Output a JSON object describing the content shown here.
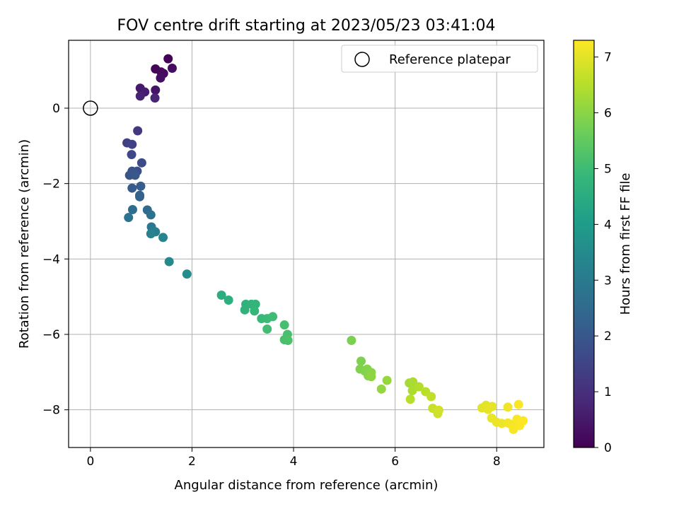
{
  "chart_data": {
    "type": "scatter",
    "title": "FOV centre drift starting at 2023/05/23 03:41:04",
    "xlabel": "Angular distance from reference (arcmin)",
    "ylabel": "Rotation from reference (arcmin)",
    "xlim": [
      -0.43,
      8.93
    ],
    "ylim": [
      -9.0,
      1.8
    ],
    "xticks": [
      0,
      2,
      4,
      6,
      8
    ],
    "yticks": [
      0,
      -2,
      -4,
      -6,
      -8
    ],
    "grid": true,
    "legend": {
      "position": "top-right",
      "entries": [
        "Reference platepar"
      ]
    },
    "reference_point": {
      "x": 0.0,
      "y": 0.0,
      "marker": "open-circle",
      "color": "#000000"
    },
    "colorbar": {
      "label": "Hours from first FF file",
      "range": [
        0,
        7.3
      ],
      "ticks": [
        0,
        1,
        2,
        3,
        4,
        5,
        6,
        7
      ],
      "colormap": "viridis",
      "stops": [
        "#440154",
        "#482878",
        "#3e4989",
        "#31688e",
        "#26828e",
        "#1f9e89",
        "#35b779",
        "#6ece58",
        "#b5de2b",
        "#fde725"
      ]
    },
    "series": [
      {
        "points": [
          [
            1.53,
            1.31,
            0.05
          ],
          [
            1.28,
            1.04,
            0.1
          ],
          [
            1.39,
            0.96,
            0.15
          ],
          [
            1.44,
            0.92,
            0.2
          ],
          [
            1.61,
            1.06,
            0.25
          ],
          [
            1.38,
            0.8,
            0.3
          ],
          [
            1.28,
            0.48,
            0.4
          ],
          [
            0.98,
            0.53,
            0.5
          ],
          [
            1.07,
            0.43,
            0.6
          ],
          [
            0.98,
            0.32,
            0.7
          ],
          [
            1.27,
            0.27,
            0.75
          ],
          [
            0.93,
            -0.6,
            1.2
          ],
          [
            0.72,
            -0.92,
            1.35
          ],
          [
            0.82,
            -0.96,
            1.45
          ],
          [
            0.81,
            -1.23,
            1.6
          ],
          [
            1.01,
            -1.45,
            1.7
          ],
          [
            0.92,
            -1.67,
            1.8
          ],
          [
            0.87,
            -1.72,
            1.85
          ],
          [
            0.82,
            -1.67,
            1.9
          ],
          [
            0.77,
            -1.78,
            1.95
          ],
          [
            0.88,
            -1.78,
            2.0
          ],
          [
            0.82,
            -2.12,
            2.1
          ],
          [
            0.99,
            -2.07,
            2.15
          ],
          [
            0.97,
            -2.31,
            2.2
          ],
          [
            0.97,
            -2.35,
            2.3
          ],
          [
            1.12,
            -2.7,
            2.5
          ],
          [
            0.83,
            -2.69,
            2.6
          ],
          [
            1.19,
            -2.83,
            2.7
          ],
          [
            0.75,
            -2.9,
            2.8
          ],
          [
            1.2,
            -3.15,
            2.9
          ],
          [
            1.22,
            -3.24,
            3.0
          ],
          [
            1.28,
            -3.28,
            3.1
          ],
          [
            1.19,
            -3.33,
            3.2
          ],
          [
            1.43,
            -3.43,
            3.3
          ],
          [
            1.55,
            -4.07,
            3.45
          ],
          [
            1.9,
            -4.4,
            3.6
          ],
          [
            2.58,
            -4.96,
            4.55
          ],
          [
            2.72,
            -5.09,
            4.6
          ],
          [
            3.06,
            -5.2,
            4.7
          ],
          [
            3.04,
            -5.35,
            4.72
          ],
          [
            3.17,
            -5.2,
            4.75
          ],
          [
            3.25,
            -5.2,
            4.8
          ],
          [
            3.23,
            -5.38,
            4.85
          ],
          [
            3.37,
            -5.58,
            4.9
          ],
          [
            3.48,
            -5.58,
            4.95
          ],
          [
            3.59,
            -5.53,
            5.0
          ],
          [
            3.48,
            -5.86,
            5.05
          ],
          [
            3.82,
            -5.75,
            5.1
          ],
          [
            3.88,
            -6.0,
            5.15
          ],
          [
            3.82,
            -6.14,
            5.15
          ],
          [
            3.89,
            -6.16,
            5.2
          ],
          [
            5.14,
            -6.16,
            5.8
          ],
          [
            5.33,
            -6.71,
            5.85
          ],
          [
            5.31,
            -6.92,
            5.87
          ],
          [
            5.4,
            -6.97,
            5.9
          ],
          [
            5.45,
            -6.92,
            5.92
          ],
          [
            5.47,
            -7.1,
            5.95
          ],
          [
            5.53,
            -7.01,
            6.0
          ],
          [
            5.53,
            -7.12,
            6.05
          ],
          [
            5.73,
            -7.45,
            6.1
          ],
          [
            5.84,
            -7.22,
            6.15
          ],
          [
            6.28,
            -7.29,
            6.3
          ],
          [
            6.35,
            -7.26,
            6.35
          ],
          [
            6.34,
            -7.49,
            6.4
          ],
          [
            6.47,
            -7.39,
            6.45
          ],
          [
            6.3,
            -7.72,
            6.5
          ],
          [
            6.6,
            -7.52,
            6.55
          ],
          [
            6.71,
            -7.65,
            6.6
          ],
          [
            6.74,
            -7.96,
            6.7
          ],
          [
            6.84,
            -8.1,
            6.75
          ],
          [
            6.86,
            -8.01,
            6.8
          ],
          [
            7.71,
            -7.95,
            7.0
          ],
          [
            7.79,
            -7.88,
            7.02
          ],
          [
            7.83,
            -7.99,
            7.05
          ],
          [
            7.91,
            -7.91,
            7.05
          ],
          [
            7.9,
            -8.22,
            7.08
          ],
          [
            8.0,
            -8.33,
            7.1
          ],
          [
            8.1,
            -8.36,
            7.12
          ],
          [
            8.22,
            -7.93,
            7.15
          ],
          [
            8.22,
            -8.35,
            7.18
          ],
          [
            8.29,
            -8.39,
            7.2
          ],
          [
            8.33,
            -8.52,
            7.22
          ],
          [
            8.4,
            -8.25,
            7.25
          ],
          [
            8.43,
            -7.86,
            7.25
          ],
          [
            8.45,
            -8.42,
            7.28
          ],
          [
            8.52,
            -8.29,
            7.3
          ]
        ]
      }
    ]
  }
}
